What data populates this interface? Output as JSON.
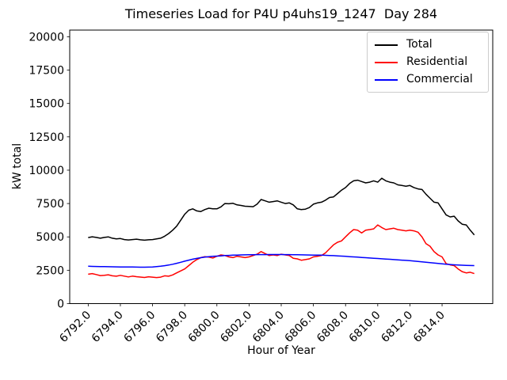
{
  "chart_data": {
    "type": "line",
    "title": "Timeseries Load for P4U p4uhs19_1247  Day 284",
    "xlabel": "Hour of Year",
    "ylabel": "kW total",
    "xlim": [
      6790.85,
      6817.15
    ],
    "ylim": [
      0,
      20500
    ],
    "grid": false,
    "legend_position": "upper right",
    "xticks": [
      6792,
      6794,
      6796,
      6798,
      6800,
      6802,
      6804,
      6806,
      6808,
      6810,
      6812,
      6814
    ],
    "xtick_labels": [
      "6792.0",
      "6794.0",
      "6796.0",
      "6798.0",
      "6800.0",
      "6802.0",
      "6804.0",
      "6806.0",
      "6808.0",
      "6810.0",
      "6812.0",
      "6814.0"
    ],
    "yticks": [
      0,
      2500,
      5000,
      7500,
      10000,
      12500,
      15000,
      17500,
      20000
    ],
    "ytick_labels": [
      "0",
      "2500",
      "5000",
      "7500",
      "10000",
      "12500",
      "15000",
      "17500",
      "20000"
    ],
    "x_start": 6792.0,
    "x_step": 0.25,
    "series": [
      {
        "name": "Total",
        "color": "#000000",
        "values": [
          4950,
          5010,
          4960,
          4900,
          4960,
          5000,
          4900,
          4850,
          4880,
          4800,
          4770,
          4800,
          4830,
          4780,
          4750,
          4780,
          4800,
          4850,
          4900,
          5050,
          5250,
          5500,
          5800,
          6250,
          6700,
          7000,
          7100,
          6950,
          6900,
          7050,
          7150,
          7100,
          7100,
          7250,
          7500,
          7480,
          7520,
          7400,
          7360,
          7300,
          7280,
          7260,
          7450,
          7800,
          7700,
          7600,
          7650,
          7700,
          7600,
          7500,
          7550,
          7400,
          7100,
          7050,
          7080,
          7200,
          7450,
          7550,
          7600,
          7750,
          7950,
          8000,
          8250,
          8500,
          8700,
          9000,
          9200,
          9250,
          9150,
          9050,
          9100,
          9200,
          9100,
          9400,
          9200,
          9100,
          9050,
          8900,
          8850,
          8800,
          8850,
          8700,
          8600,
          8550,
          8200,
          7900,
          7600,
          7550,
          7100,
          6650,
          6500,
          6550,
          6200,
          5950,
          5900,
          5500,
          5150
        ]
      },
      {
        "name": "Residential",
        "color": "#ff0000",
        "values": [
          2200,
          2250,
          2180,
          2100,
          2120,
          2160,
          2080,
          2050,
          2120,
          2060,
          2000,
          2060,
          2020,
          1990,
          1960,
          2010,
          1980,
          1950,
          1980,
          2080,
          2050,
          2150,
          2300,
          2450,
          2600,
          2850,
          3100,
          3300,
          3450,
          3520,
          3480,
          3420,
          3550,
          3650,
          3600,
          3500,
          3450,
          3550,
          3500,
          3450,
          3500,
          3600,
          3700,
          3900,
          3750,
          3600,
          3650,
          3600,
          3700,
          3650,
          3600,
          3400,
          3350,
          3250,
          3300,
          3350,
          3500,
          3550,
          3600,
          3800,
          4100,
          4400,
          4600,
          4700,
          5000,
          5300,
          5550,
          5500,
          5300,
          5500,
          5550,
          5600,
          5900,
          5700,
          5550,
          5600,
          5650,
          5550,
          5500,
          5450,
          5500,
          5450,
          5350,
          5000,
          4500,
          4300,
          3900,
          3650,
          3500,
          3000,
          2900,
          2850,
          2600,
          2400,
          2300,
          2350,
          2250
        ]
      },
      {
        "name": "Commercial",
        "color": "#0000ff",
        "values": [
          2800,
          2790,
          2780,
          2775,
          2770,
          2765,
          2760,
          2755,
          2750,
          2745,
          2740,
          2740,
          2735,
          2730,
          2730,
          2735,
          2750,
          2770,
          2800,
          2840,
          2890,
          2950,
          3020,
          3100,
          3180,
          3260,
          3330,
          3390,
          3440,
          3480,
          3510,
          3540,
          3560,
          3580,
          3600,
          3615,
          3630,
          3640,
          3650,
          3655,
          3660,
          3665,
          3670,
          3670,
          3675,
          3680,
          3680,
          3680,
          3680,
          3675,
          3670,
          3665,
          3660,
          3655,
          3650,
          3645,
          3640,
          3635,
          3630,
          3620,
          3610,
          3595,
          3580,
          3560,
          3540,
          3520,
          3500,
          3480,
          3460,
          3440,
          3420,
          3400,
          3380,
          3360,
          3340,
          3320,
          3300,
          3280,
          3260,
          3240,
          3220,
          3190,
          3160,
          3130,
          3100,
          3070,
          3040,
          3010,
          2980,
          2950,
          2930,
          2910,
          2890,
          2875,
          2865,
          2855,
          2850
        ]
      }
    ]
  }
}
